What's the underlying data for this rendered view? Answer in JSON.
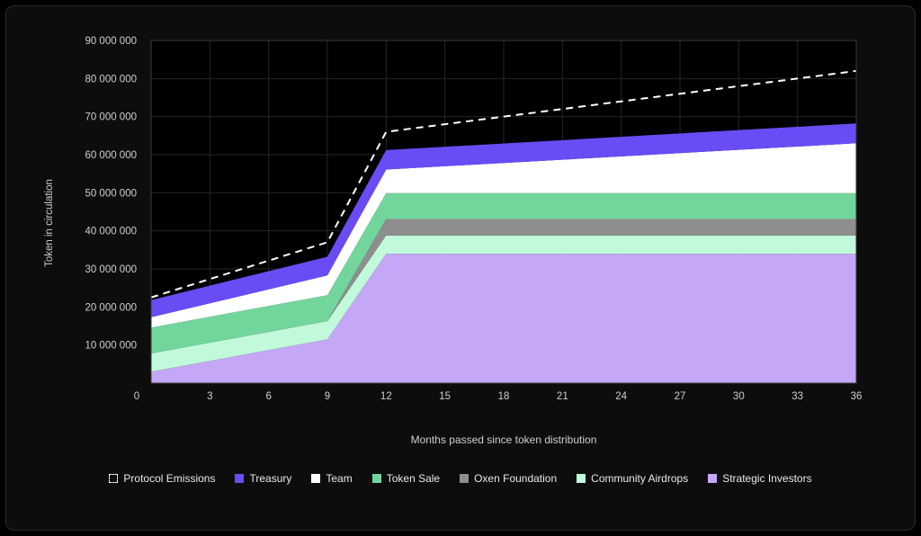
{
  "chart_data": {
    "type": "area",
    "stacked": true,
    "xlabel": "Months passed since token distribution",
    "ylabel": "Token in circulation",
    "x": [
      0,
      9,
      12,
      36
    ],
    "xticks": [
      0,
      3,
      6,
      9,
      12,
      15,
      18,
      21,
      24,
      27,
      30,
      33,
      36
    ],
    "yticks": [
      10000000,
      20000000,
      30000000,
      40000000,
      50000000,
      60000000,
      70000000,
      80000000,
      90000000
    ],
    "ytick_labels": [
      "10 000 000",
      "20 000 000",
      "30 000 000",
      "40 000 000",
      "50 000 000",
      "60 000 000",
      "70 000 000",
      "80 000 000",
      "90 000 000"
    ],
    "ylim": [
      0,
      90000000
    ],
    "xlim": [
      0,
      36
    ],
    "grid": true,
    "legend_position": "bottom",
    "series": [
      {
        "name": "Strategic Investors",
        "color": "#c4a8f7",
        "values": [
          3000000,
          11500000,
          34000000,
          34000000
        ]
      },
      {
        "name": "Community Airdrops",
        "color": "#c1fadb",
        "values": [
          4800000,
          4800000,
          4800000,
          4800000
        ]
      },
      {
        "name": "Oxen Foundation",
        "color": "#8e8e8e",
        "values": [
          0,
          0,
          4300000,
          4300000
        ]
      },
      {
        "name": "Token Sale",
        "color": "#72d69c",
        "values": [
          6800000,
          6800000,
          6800000,
          6800000
        ]
      },
      {
        "name": "Team",
        "color": "#ffffff",
        "values": [
          2700000,
          5200000,
          6200000,
          13100000
        ]
      },
      {
        "name": "Treasury",
        "color": "#6a4cf5",
        "values": [
          4500000,
          4900000,
          5100000,
          5200000
        ]
      }
    ],
    "line": {
      "name": "Protocol Emissions",
      "color": "#ffffff",
      "style": "dashed",
      "values": [
        22500000,
        37000000,
        66000000,
        82000000
      ]
    }
  }
}
